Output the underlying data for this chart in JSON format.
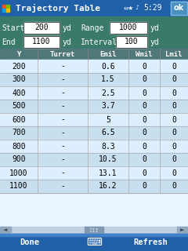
{
  "title": "Trajectory Table",
  "title_time": "5:29",
  "start_val": "200",
  "end_val": "1100",
  "range_val": "1000",
  "interval_val": "100",
  "col_headers": [
    "Y",
    "Turret",
    "Emil",
    "Wmil",
    "Lmil"
  ],
  "rows": [
    [
      "200",
      "-",
      "0.6",
      "0",
      "0"
    ],
    [
      "300",
      "-",
      "1.5",
      "0",
      "0"
    ],
    [
      "400",
      "-",
      "2.5",
      "0",
      "0"
    ],
    [
      "500",
      "-",
      "3.7",
      "0",
      "0"
    ],
    [
      "600",
      "-",
      "5",
      "0",
      "0"
    ],
    [
      "700",
      "-",
      "6.5",
      "0",
      "0"
    ],
    [
      "800",
      "-",
      "8.3",
      "0",
      "0"
    ],
    [
      "900",
      "-",
      "10.5",
      "0",
      "0"
    ],
    [
      "1000",
      "-",
      "13.1",
      "0",
      "0"
    ],
    [
      "1100",
      "-",
      "16.2",
      "0",
      "0"
    ]
  ],
  "titlebar_color": "#2878c0",
  "input_bg": "#3a7a6a",
  "table_bg_light": "#ddeeff",
  "table_bg_dark": "#c8dff0",
  "col_header_bg": "#507a7a",
  "bottom_bar_color": "#3060a8",
  "scrollbar_bg": "#c8dae8"
}
